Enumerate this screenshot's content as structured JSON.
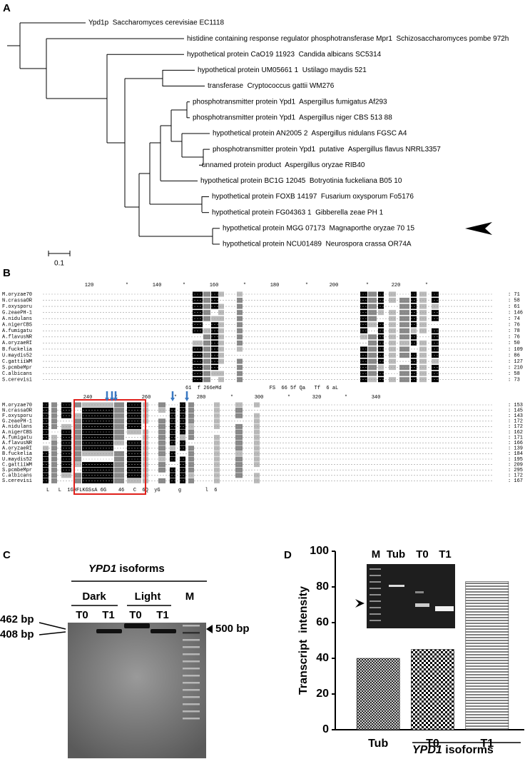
{
  "panel_a": {
    "label": "A",
    "leaves": [
      "Ypd1p  Saccharomyces cerevisiae EC1118",
      "histidine containing response regulator phosphotransferase Mpr1  Schizosaccharomyces pombe 972h",
      "hypothetical protein CaO19 11923  Candida albicans SC5314",
      "hypothetical protein UM05661 1  Ustilago maydis 521",
      "transferase  Cryptococcus gattii WM276",
      "phosphotransmitter protein Ypd1  Aspergillus fumigatus Af293",
      "phosphotransmitter protein Ypd1  Aspergillus niger CBS 513 88",
      "hypothetical protein AN2005 2  Aspergillus nidulans FGSC A4",
      "phosphotransmitter protein Ypd1  putative  Aspergillus flavus NRRL3357",
      "unnamed protein product  Aspergillus oryzae RIB40",
      "hypothetical protein BC1G 12045  Botryotinia fuckeliana B05 10",
      "hypothetical protein FOXB 14197  Fusarium oxysporum Fo5176",
      "hypothetical protein FG04363 1  Gibberella zeae PH 1",
      "hypothetical protein MGG 07173  Magnaporthe oryzae 70 15",
      "hypothetical protein NCU01489  Neurospora crassa OR74A"
    ],
    "scale": "0.1"
  },
  "panel_b": {
    "label": "B",
    "names": [
      "M.oryzae70",
      "N.crassaOR",
      "F.oxysporu",
      "G.zeaePH-1",
      "A.nidulans",
      "A.nigerCBS",
      "A.fumigatu",
      "A.flavusNR",
      "A.oryzaeRI",
      "B.fuckelia",
      "U.maydis52",
      "C.gattiiWM",
      "S.pcmbeMpr",
      "C.albicans",
      "S.cerevisi"
    ],
    "blocks": [
      {
        "ruler": [
          "120",
          "*",
          "140",
          "*",
          "160",
          "*",
          "180",
          "*",
          "200",
          "*",
          "220",
          "*"
        ],
        "ends": [
          ": 71",
          ": 58",
          ": 61",
          ": 146",
          ": 74",
          ": 76",
          ": 78",
          ": 76",
          ": 50",
          ": 109",
          ": 86",
          ": 127",
          ": 210",
          ": 58",
          ": 73"
        ],
        "consensus": "61  f 266eMd                FS  66 5f Qa   Tf  6 aL"
      },
      {
        "ruler": [
          "240",
          "*",
          "260",
          "*",
          "280",
          "*",
          "300",
          "*",
          "320",
          "*",
          "340"
        ],
        "ends": [
          ": 153",
          ": 145",
          ": 143",
          ": 172",
          ": 172",
          ": 162",
          ": 171",
          ": 166",
          ": 139",
          ": 184",
          ": 195",
          ": 209",
          ": 295",
          ": 172",
          ": 167"
        ],
        "consensus": "L   L  1GHFLKGSsA 6G    46   C  6Q  yG      g        l  6"
      }
    ]
  },
  "panel_c": {
    "label": "C",
    "title": "YPD1",
    "title_rest": " isoforms",
    "conditions": [
      "Dark",
      "Light"
    ],
    "ladder": "M",
    "lanes": [
      "T0",
      "T1",
      "T0",
      "T1"
    ],
    "left_markers": [
      "462 bp",
      "408 bp"
    ],
    "right_marker": "500 bp"
  },
  "chart_data": {
    "type": "bar",
    "panel_label": "D",
    "categories": [
      "Tub",
      "T0",
      "T1"
    ],
    "values": [
      40,
      45,
      83
    ],
    "ylim": [
      0,
      100
    ],
    "yticks": [
      0,
      20,
      40,
      60,
      80,
      100
    ],
    "y_label": "Transcript  intensity",
    "x_label_italic": "YPD1",
    "x_label": " isoforms",
    "inset_lanes": [
      "M",
      "Tub",
      "T0",
      "T1"
    ],
    "color": "#000000"
  }
}
